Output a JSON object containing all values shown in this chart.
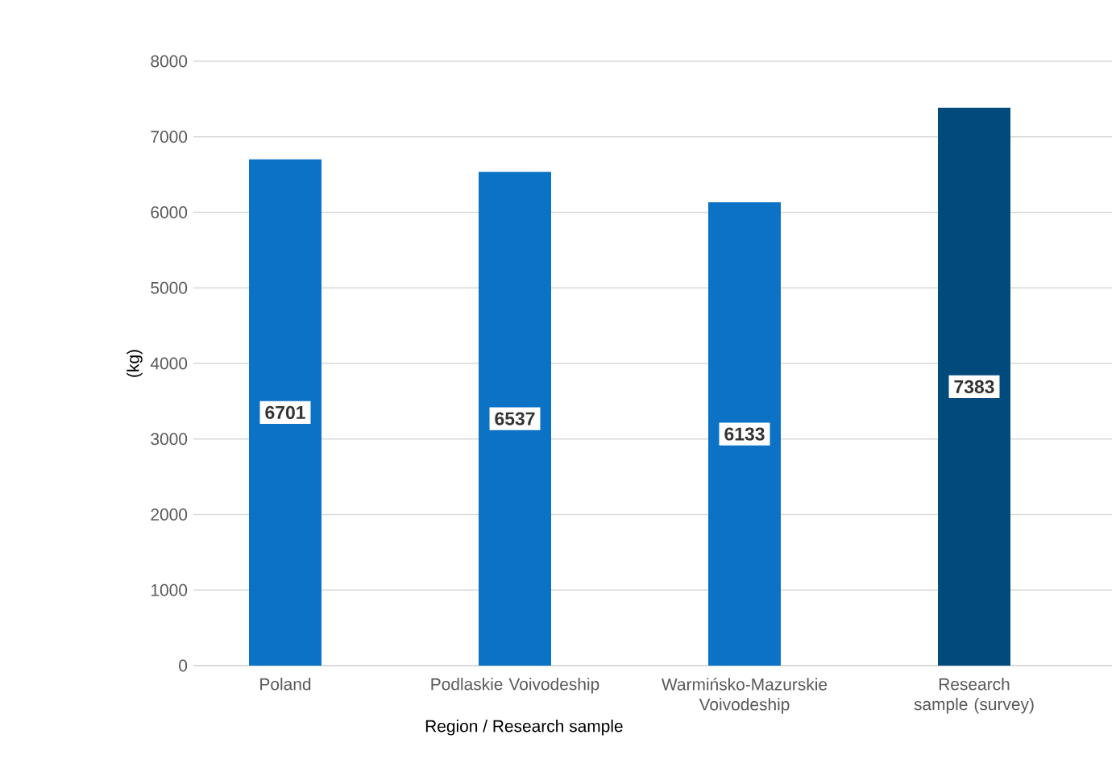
{
  "chart_data": {
    "type": "bar",
    "xlabel": "Region / Research sample",
    "ylabel": "(kg)",
    "categories": [
      "Poland",
      "Podlaskie Voivodeship",
      "Warmińsko-Mazurskie Voivodeship",
      "Research sample (survey)"
    ],
    "values": [
      6701,
      6537,
      6133,
      7383
    ],
    "colors": [
      "#0b72c5",
      "#0b72c5",
      "#0b72c5",
      "#004a7c"
    ],
    "ylim": [
      0,
      8000
    ],
    "yticks": [
      0,
      1000,
      2000,
      3000,
      4000,
      5000,
      6000,
      7000,
      8000
    ],
    "grid": "y",
    "data_labels": true
  }
}
